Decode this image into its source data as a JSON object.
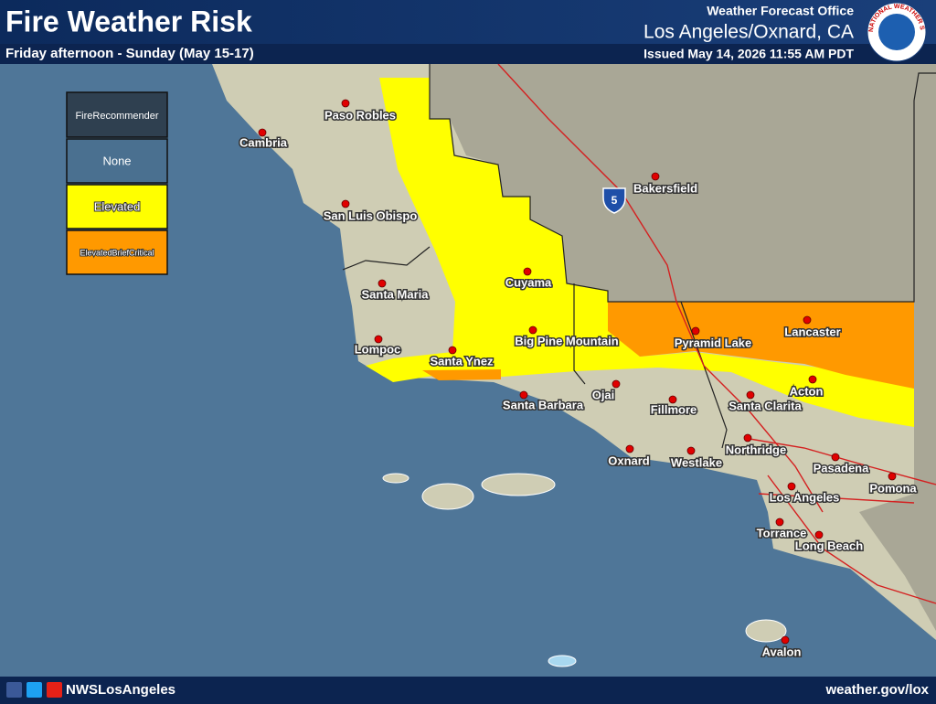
{
  "header": {
    "title": "Fire Weather Risk",
    "subtitle": "Friday afternoon - Sunday (May 15-17)",
    "office": "Weather Forecast Office",
    "location": "Los Angeles/Oxnard, CA",
    "issued": "Issued May 14, 2026 11:55 AM PDT"
  },
  "logo_text": "NATIONAL WEATHER SERVICE",
  "legend": {
    "title": "FireRecommender",
    "items": [
      "None",
      "Elevated",
      "ElevatedBriefCritical"
    ]
  },
  "highway": "5",
  "cities": [
    "Paso Robles",
    "Cambria",
    "San Luis Obispo",
    "Santa Maria",
    "Lompoc",
    "Santa Ynez",
    "Cuyama",
    "Big Pine Mountain",
    "Santa Barbara",
    "Ojai",
    "Fillmore",
    "Oxnard",
    "Westlake",
    "Bakersfield",
    "Pyramid Lake",
    "Lancaster",
    "Acton",
    "Santa Clarita",
    "Northridge",
    "Pasadena",
    "Pomona",
    "Los Angeles",
    "Torrance",
    "Long Beach",
    "Avalon"
  ],
  "footer": {
    "handle": "NWSLosAngeles",
    "site": "weather.gov/lox"
  }
}
